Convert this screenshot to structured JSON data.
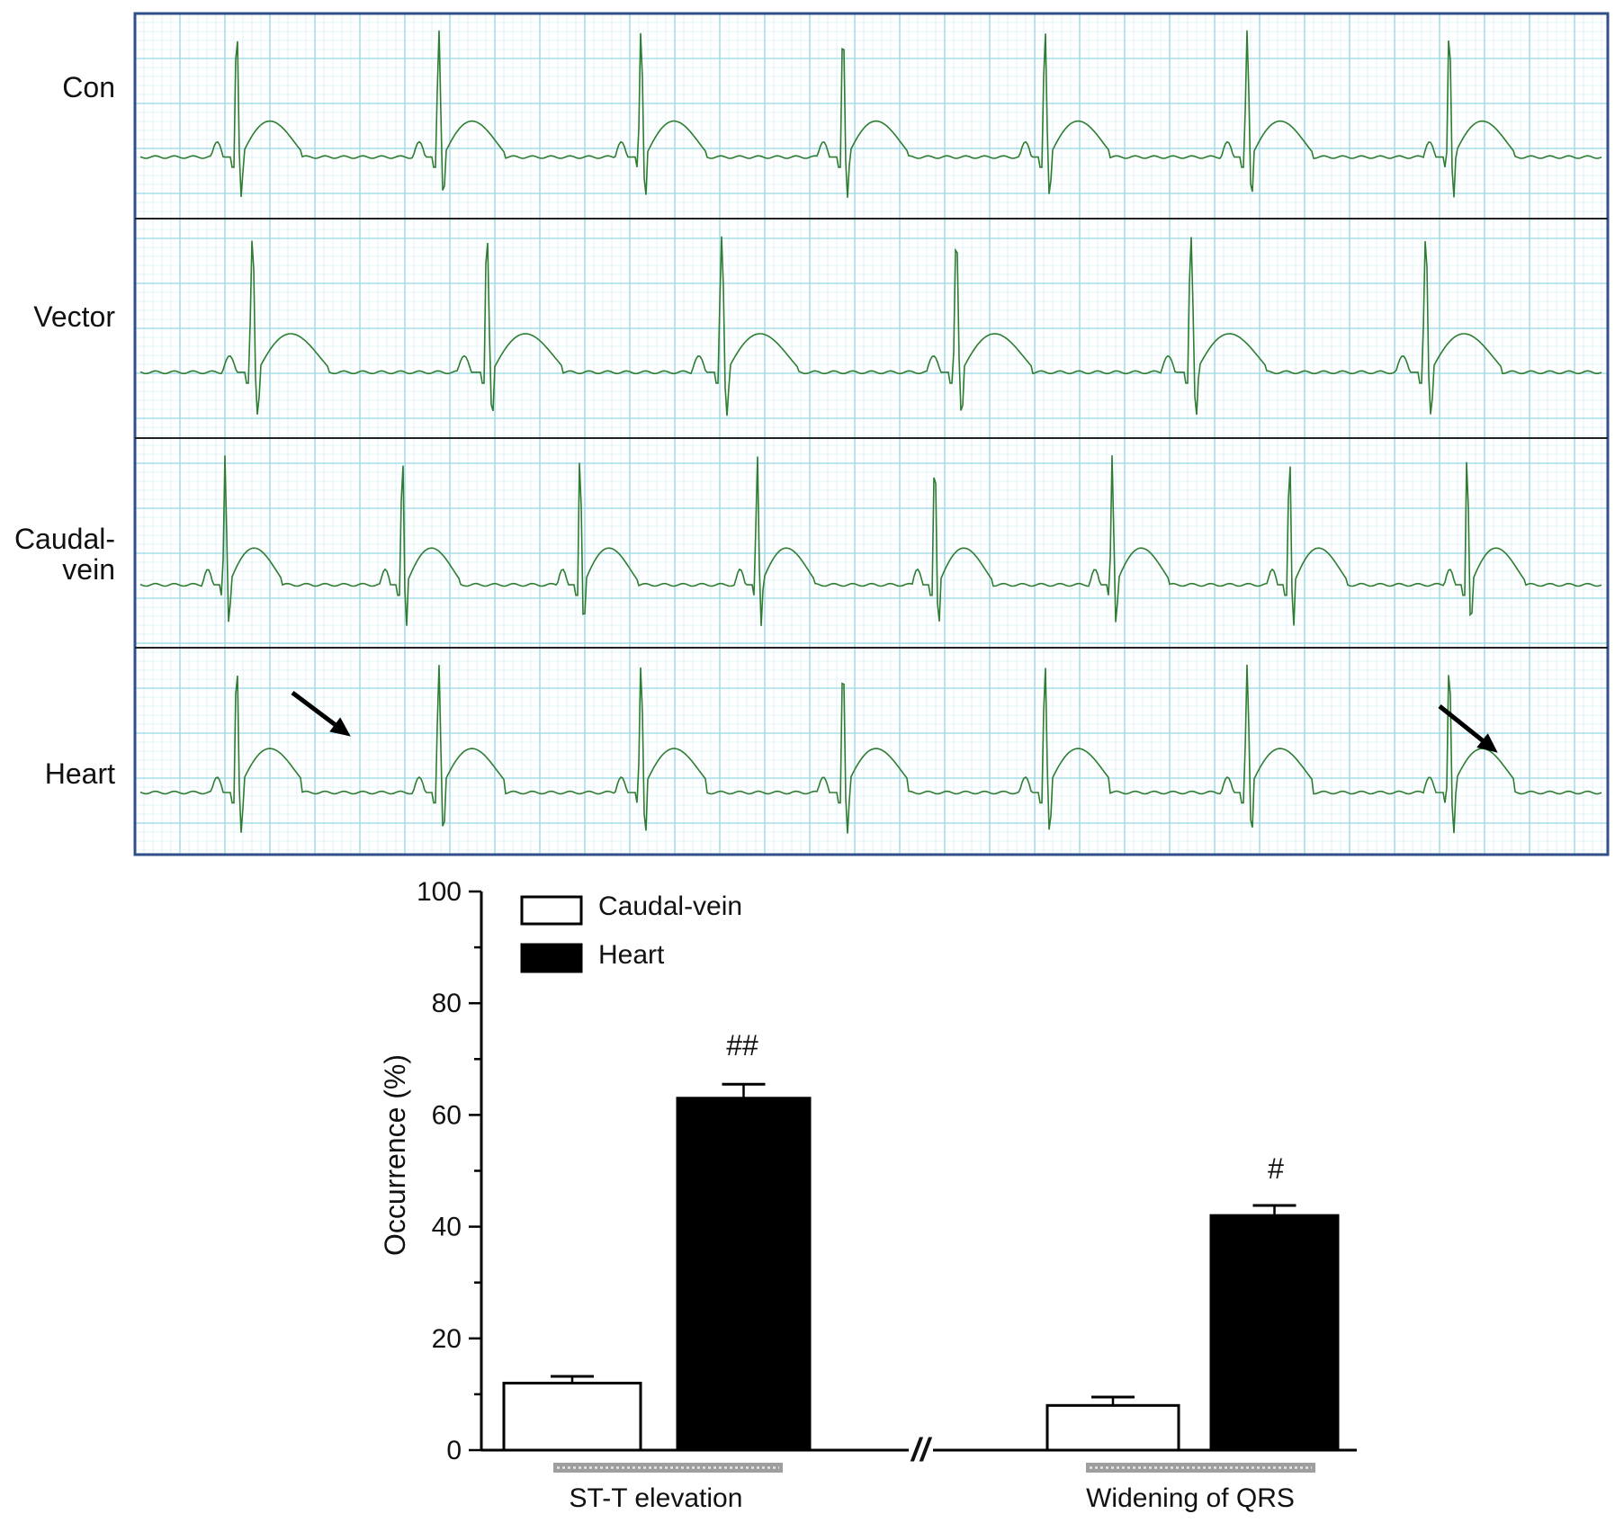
{
  "ecg": {
    "traces": [
      {
        "label": "Con",
        "heart_rate_beats": 7
      },
      {
        "label": "Vector",
        "heart_rate_beats": 6
      },
      {
        "label": "Caudal-\nvein",
        "heart_rate_beats": 8
      },
      {
        "label": "Heart",
        "heart_rate_beats": 7
      }
    ],
    "grid_color": "#9fdbe6",
    "trace_color": "#2e7d32",
    "frame_color": "#2f4f8a",
    "arrow_annotations": 2
  },
  "chart_data": {
    "type": "bar",
    "categories": [
      "ST-T elevation",
      "Widening of QRS"
    ],
    "series": [
      {
        "name": "Caudal-vein",
        "values": [
          12,
          8
        ],
        "errors": [
          1.2,
          1.5
        ],
        "fill": "#ffffff"
      },
      {
        "name": "Heart",
        "values": [
          63,
          42
        ],
        "errors": [
          2.5,
          1.8
        ],
        "fill": "#000000"
      }
    ],
    "annotations": [
      "##",
      "#"
    ],
    "ylabel": "Occurrence (%)",
    "xlabel": "",
    "ylim": [
      0,
      100
    ],
    "yticks": [
      0,
      20,
      40,
      60,
      80,
      100
    ],
    "axis_break": "//",
    "legend_position": "top-left",
    "grid": false
  }
}
